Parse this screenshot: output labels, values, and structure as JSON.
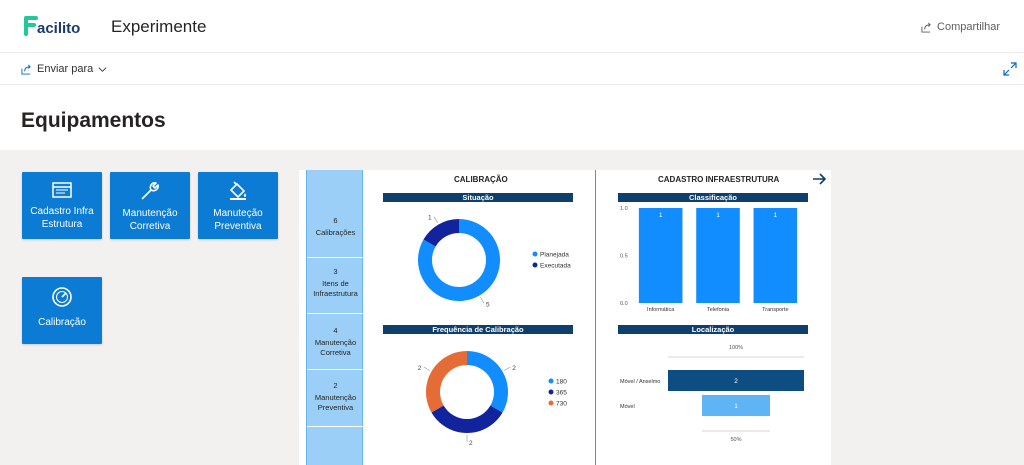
{
  "header": {
    "logo_text": "Facilito",
    "app_title": "Experimente",
    "share_label": "Compartilhar"
  },
  "toolbar": {
    "send_label": "Enviar para"
  },
  "page": {
    "title": "Equipamentos"
  },
  "nav_buttons": [
    {
      "label": "Cadastro Infra Estrutura",
      "icon": "infrastructure-icon"
    },
    {
      "label": "Manutenção Corretiva",
      "icon": "wrench-icon"
    },
    {
      "label": "Manuteção Preventiva",
      "icon": "paint-bucket-icon"
    },
    {
      "label": "Calibração",
      "icon": "gauge-icon"
    }
  ],
  "kpis": [
    {
      "value": "6",
      "label": "Calibrações"
    },
    {
      "value": "3",
      "label": "Itens de Infraestrutura"
    },
    {
      "value": "4",
      "label": "Manutenção Corretiva"
    },
    {
      "value": "2",
      "label": "Manutenção Preventiva"
    }
  ],
  "sections": {
    "calibration": "CALIBRAÇÃO",
    "infrastructure": "CADASTRO INFRAESTRUTURA"
  },
  "chart_data": [
    {
      "type": "pie",
      "title": "Situação",
      "categories": [
        "Planejada",
        "Executada"
      ],
      "values": [
        5,
        1
      ],
      "colors": [
        "#118dff",
        "#12239e"
      ],
      "legend": "right"
    },
    {
      "type": "pie",
      "title": "Frequência de Calibração",
      "categories": [
        "180",
        "365",
        "730"
      ],
      "values": [
        2,
        2,
        2
      ],
      "colors": [
        "#118dff",
        "#12239e",
        "#e66c37"
      ],
      "legend": "right"
    },
    {
      "type": "bar",
      "title": "Classificação",
      "categories": [
        "Informática",
        "Telefonia",
        "Transporte"
      ],
      "values": [
        1,
        1,
        1
      ],
      "y_ticks": [
        "1.0",
        "0.5",
        "0.0"
      ],
      "ylim": [
        0,
        1
      ],
      "color": "#118dff"
    },
    {
      "type": "bar",
      "title": "Localização",
      "orientation": "horizontal",
      "categories": [
        "Móvel / Anselmo",
        "Móvel"
      ],
      "values": [
        2,
        1
      ],
      "colors": [
        "#0e4d82",
        "#5fb4f6"
      ],
      "top_label": "100%",
      "bottom_label": "50%"
    }
  ],
  "colors": {
    "accent": "#0b7bd3",
    "header_bar": "#0e3f6d",
    "canvas": "#f2f1f0"
  }
}
